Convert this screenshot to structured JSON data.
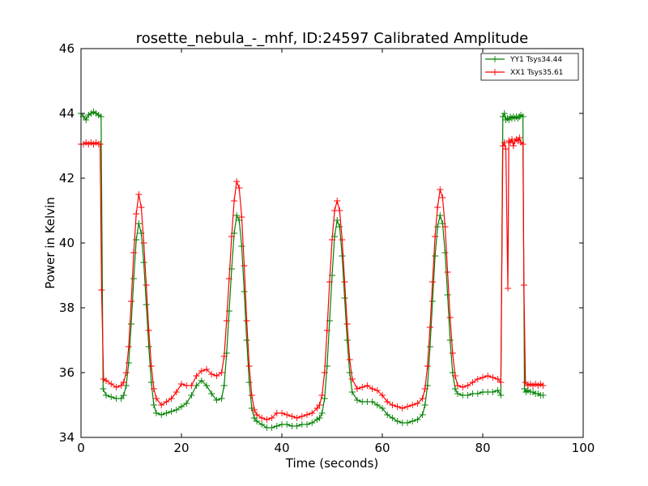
{
  "chart_data": {
    "type": "line",
    "title": "rosette_nebula_-_mhf, ID:24597 Calibrated Amplitude",
    "xlabel": "Time (seconds)",
    "ylabel": "Power in Kelvin",
    "xlim": [
      0,
      100
    ],
    "ylim": [
      34,
      46
    ],
    "xticks": [
      "0",
      "20",
      "40",
      "60",
      "80",
      "100"
    ],
    "yticks": [
      "34",
      "36",
      "38",
      "40",
      "42",
      "44",
      "46"
    ],
    "grid": false,
    "legend_position": "top-right",
    "series": [
      {
        "name": "YY1 Tsys34.44",
        "color": "#008000",
        "marker": "plus",
        "points": [
          [
            0,
            44.0
          ],
          [
            0.5,
            43.9
          ],
          [
            1.0,
            43.8
          ],
          [
            1.5,
            43.95
          ],
          [
            2.0,
            44.0
          ],
          [
            2.5,
            44.05
          ],
          [
            3.0,
            44.0
          ],
          [
            3.5,
            43.95
          ],
          [
            4.0,
            43.9
          ],
          [
            4.4,
            35.5
          ],
          [
            5.0,
            35.3
          ],
          [
            6.0,
            35.25
          ],
          [
            7.0,
            35.2
          ],
          [
            8.0,
            35.2
          ],
          [
            8.5,
            35.3
          ],
          [
            9.0,
            35.6
          ],
          [
            9.5,
            36.3
          ],
          [
            10.0,
            37.5
          ],
          [
            10.5,
            38.9
          ],
          [
            11.0,
            40.1
          ],
          [
            11.5,
            40.6
          ],
          [
            12.0,
            40.3
          ],
          [
            12.5,
            39.4
          ],
          [
            13.0,
            38.1
          ],
          [
            13.5,
            36.8
          ],
          [
            14.0,
            35.7
          ],
          [
            14.5,
            35.0
          ],
          [
            15.0,
            34.75
          ],
          [
            16.0,
            34.7
          ],
          [
            17.0,
            34.75
          ],
          [
            18.0,
            34.8
          ],
          [
            19.0,
            34.85
          ],
          [
            20.0,
            34.95
          ],
          [
            21.0,
            35.05
          ],
          [
            22.0,
            35.3
          ],
          [
            23.0,
            35.6
          ],
          [
            24.0,
            35.75
          ],
          [
            25.0,
            35.6
          ],
          [
            26.0,
            35.35
          ],
          [
            27.0,
            35.15
          ],
          [
            28.0,
            35.2
          ],
          [
            28.5,
            35.6
          ],
          [
            29.0,
            36.6
          ],
          [
            29.5,
            37.9
          ],
          [
            30.0,
            39.2
          ],
          [
            30.5,
            40.3
          ],
          [
            31.0,
            40.85
          ],
          [
            31.5,
            40.7
          ],
          [
            32.0,
            39.9
          ],
          [
            32.5,
            38.5
          ],
          [
            33.0,
            37.0
          ],
          [
            33.5,
            35.7
          ],
          [
            34.0,
            34.9
          ],
          [
            34.5,
            34.6
          ],
          [
            35.0,
            34.5
          ],
          [
            36.0,
            34.4
          ],
          [
            37.0,
            34.3
          ],
          [
            38.0,
            34.3
          ],
          [
            39.0,
            34.35
          ],
          [
            40.0,
            34.4
          ],
          [
            41.0,
            34.4
          ],
          [
            42.0,
            34.35
          ],
          [
            43.0,
            34.35
          ],
          [
            44.0,
            34.4
          ],
          [
            45.0,
            34.4
          ],
          [
            46.0,
            34.45
          ],
          [
            47.0,
            34.55
          ],
          [
            47.5,
            34.6
          ],
          [
            48.0,
            34.75
          ],
          [
            48.5,
            35.2
          ],
          [
            49.0,
            36.2
          ],
          [
            49.5,
            37.6
          ],
          [
            50.0,
            39.0
          ],
          [
            50.5,
            40.2
          ],
          [
            51.0,
            40.7
          ],
          [
            51.5,
            40.5
          ],
          [
            52.0,
            39.6
          ],
          [
            52.5,
            38.3
          ],
          [
            53.0,
            37.0
          ],
          [
            53.5,
            36.0
          ],
          [
            54.0,
            35.4
          ],
          [
            55.0,
            35.15
          ],
          [
            56.0,
            35.1
          ],
          [
            57.0,
            35.1
          ],
          [
            58.0,
            35.1
          ],
          [
            59.0,
            35.0
          ],
          [
            60.0,
            34.9
          ],
          [
            61.0,
            34.7
          ],
          [
            62.0,
            34.6
          ],
          [
            63.0,
            34.5
          ],
          [
            64.0,
            34.45
          ],
          [
            65.0,
            34.45
          ],
          [
            66.0,
            34.5
          ],
          [
            67.0,
            34.55
          ],
          [
            68.0,
            34.7
          ],
          [
            68.5,
            35.0
          ],
          [
            69.0,
            35.6
          ],
          [
            69.5,
            36.8
          ],
          [
            70.0,
            38.2
          ],
          [
            70.5,
            39.6
          ],
          [
            71.0,
            40.5
          ],
          [
            71.5,
            40.85
          ],
          [
            72.0,
            40.6
          ],
          [
            72.5,
            39.7
          ],
          [
            73.0,
            38.4
          ],
          [
            73.5,
            37.0
          ],
          [
            74.0,
            36.0
          ],
          [
            74.5,
            35.5
          ],
          [
            75.0,
            35.35
          ],
          [
            76.0,
            35.3
          ],
          [
            77.0,
            35.3
          ],
          [
            78.0,
            35.35
          ],
          [
            79.0,
            35.35
          ],
          [
            80.0,
            35.4
          ],
          [
            81.0,
            35.4
          ],
          [
            82.0,
            35.4
          ],
          [
            83.0,
            35.45
          ],
          [
            83.6,
            35.3
          ],
          [
            84.0,
            43.9
          ],
          [
            84.3,
            44.0
          ],
          [
            84.6,
            43.8
          ],
          [
            84.9,
            43.85
          ],
          [
            85.2,
            43.8
          ],
          [
            85.5,
            43.9
          ],
          [
            85.8,
            43.85
          ],
          [
            86.1,
            43.9
          ],
          [
            86.4,
            43.85
          ],
          [
            86.7,
            43.9
          ],
          [
            87.0,
            43.85
          ],
          [
            87.3,
            43.9
          ],
          [
            87.6,
            43.95
          ],
          [
            88.0,
            43.9
          ],
          [
            88.3,
            35.5
          ],
          [
            88.6,
            35.4
          ],
          [
            89.0,
            35.45
          ],
          [
            89.5,
            35.4
          ],
          [
            90.0,
            35.4
          ],
          [
            90.5,
            35.35
          ],
          [
            91.0,
            35.35
          ],
          [
            91.5,
            35.3
          ],
          [
            92.0,
            35.3
          ]
        ]
      },
      {
        "name": "XX1 Tsys35.61",
        "color": "#ff0000",
        "marker": "plus",
        "points": [
          [
            0,
            43.05
          ],
          [
            0.5,
            43.05
          ],
          [
            1.0,
            43.1
          ],
          [
            1.5,
            43.05
          ],
          [
            2.0,
            43.1
          ],
          [
            2.5,
            43.05
          ],
          [
            3.0,
            43.1
          ],
          [
            3.5,
            43.05
          ],
          [
            3.8,
            43.05
          ],
          [
            4.1,
            38.55
          ],
          [
            4.5,
            35.8
          ],
          [
            5.0,
            35.75
          ],
          [
            6.0,
            35.65
          ],
          [
            7.0,
            35.55
          ],
          [
            8.0,
            35.6
          ],
          [
            8.5,
            35.7
          ],
          [
            9.0,
            36.0
          ],
          [
            9.5,
            36.8
          ],
          [
            10.0,
            38.2
          ],
          [
            10.5,
            39.7
          ],
          [
            11.0,
            40.9
          ],
          [
            11.5,
            41.5
          ],
          [
            12.0,
            41.1
          ],
          [
            12.5,
            40.0
          ],
          [
            13.0,
            38.7
          ],
          [
            13.5,
            37.3
          ],
          [
            14.0,
            36.2
          ],
          [
            14.5,
            35.5
          ],
          [
            15.0,
            35.2
          ],
          [
            16.0,
            35.0
          ],
          [
            17.0,
            35.1
          ],
          [
            18.0,
            35.2
          ],
          [
            19.0,
            35.4
          ],
          [
            20.0,
            35.65
          ],
          [
            21.0,
            35.6
          ],
          [
            22.0,
            35.6
          ],
          [
            23.0,
            35.9
          ],
          [
            24.0,
            36.05
          ],
          [
            25.0,
            36.1
          ],
          [
            26.0,
            35.95
          ],
          [
            27.0,
            35.9
          ],
          [
            28.0,
            36.0
          ],
          [
            28.5,
            36.5
          ],
          [
            29.0,
            37.6
          ],
          [
            29.5,
            38.9
          ],
          [
            30.0,
            40.2
          ],
          [
            30.5,
            41.3
          ],
          [
            31.0,
            41.9
          ],
          [
            31.5,
            41.7
          ],
          [
            32.0,
            40.8
          ],
          [
            32.5,
            39.3
          ],
          [
            33.0,
            37.6
          ],
          [
            33.5,
            36.2
          ],
          [
            34.0,
            35.3
          ],
          [
            34.5,
            34.85
          ],
          [
            35.0,
            34.7
          ],
          [
            36.0,
            34.6
          ],
          [
            37.0,
            34.55
          ],
          [
            38.0,
            34.6
          ],
          [
            39.0,
            34.75
          ],
          [
            40.0,
            34.75
          ],
          [
            41.0,
            34.7
          ],
          [
            42.0,
            34.65
          ],
          [
            43.0,
            34.6
          ],
          [
            44.0,
            34.65
          ],
          [
            45.0,
            34.7
          ],
          [
            46.0,
            34.75
          ],
          [
            47.0,
            34.9
          ],
          [
            47.5,
            35.0
          ],
          [
            48.0,
            35.3
          ],
          [
            48.5,
            36.0
          ],
          [
            49.0,
            37.3
          ],
          [
            49.5,
            38.8
          ],
          [
            50.0,
            40.1
          ],
          [
            50.5,
            41.0
          ],
          [
            51.0,
            41.3
          ],
          [
            51.5,
            41.0
          ],
          [
            52.0,
            40.1
          ],
          [
            52.5,
            38.8
          ],
          [
            53.0,
            37.5
          ],
          [
            53.5,
            36.4
          ],
          [
            54.0,
            35.8
          ],
          [
            55.0,
            35.5
          ],
          [
            56.0,
            35.55
          ],
          [
            57.0,
            35.6
          ],
          [
            58.0,
            35.5
          ],
          [
            59.0,
            35.45
          ],
          [
            60.0,
            35.3
          ],
          [
            61.0,
            35.1
          ],
          [
            62.0,
            35.0
          ],
          [
            63.0,
            34.95
          ],
          [
            64.0,
            34.9
          ],
          [
            65.0,
            34.95
          ],
          [
            66.0,
            35.0
          ],
          [
            67.0,
            35.05
          ],
          [
            68.0,
            35.2
          ],
          [
            68.5,
            35.5
          ],
          [
            69.0,
            36.2
          ],
          [
            69.5,
            37.4
          ],
          [
            70.0,
            38.8
          ],
          [
            70.5,
            40.2
          ],
          [
            71.0,
            41.1
          ],
          [
            71.5,
            41.65
          ],
          [
            72.0,
            41.4
          ],
          [
            72.5,
            40.5
          ],
          [
            73.0,
            39.1
          ],
          [
            73.5,
            37.7
          ],
          [
            74.0,
            36.6
          ],
          [
            74.5,
            35.9
          ],
          [
            75.0,
            35.6
          ],
          [
            76.0,
            35.55
          ],
          [
            77.0,
            35.6
          ],
          [
            78.0,
            35.7
          ],
          [
            79.0,
            35.8
          ],
          [
            80.0,
            35.85
          ],
          [
            81.0,
            35.9
          ],
          [
            82.0,
            35.85
          ],
          [
            83.0,
            35.8
          ],
          [
            83.6,
            35.7
          ],
          [
            84.0,
            43.0
          ],
          [
            84.3,
            43.1
          ],
          [
            84.6,
            42.9
          ],
          [
            85.0,
            38.6
          ],
          [
            85.2,
            43.15
          ],
          [
            85.5,
            43.1
          ],
          [
            85.8,
            43.2
          ],
          [
            86.1,
            43.0
          ],
          [
            86.4,
            43.15
          ],
          [
            86.7,
            43.2
          ],
          [
            87.0,
            43.15
          ],
          [
            87.3,
            43.25
          ],
          [
            87.6,
            43.1
          ],
          [
            88.0,
            43.05
          ],
          [
            88.2,
            38.7
          ],
          [
            88.5,
            35.7
          ],
          [
            89.0,
            35.6
          ],
          [
            89.5,
            35.65
          ],
          [
            90.0,
            35.6
          ],
          [
            90.5,
            35.65
          ],
          [
            91.0,
            35.6
          ],
          [
            91.5,
            35.65
          ],
          [
            92.0,
            35.6
          ]
        ]
      }
    ]
  }
}
